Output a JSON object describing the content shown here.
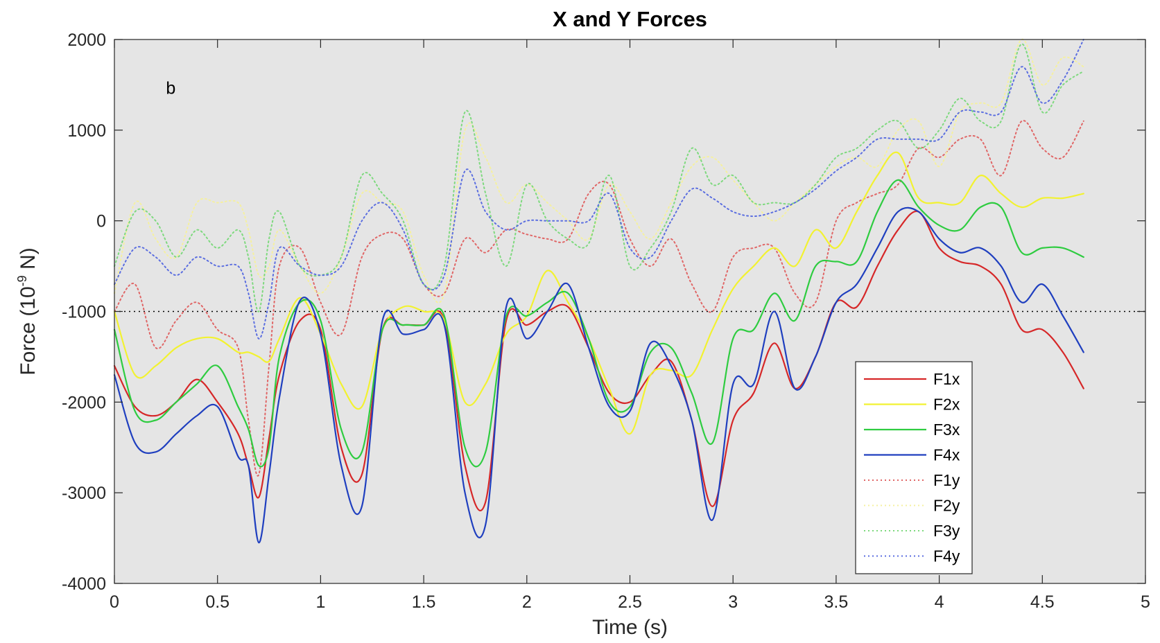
{
  "chart_data": {
    "type": "line",
    "title": "X and Y Forces",
    "xlabel": "Time (s)",
    "ylabel_main": "Force (10",
    "ylabel_exp": "-9",
    "ylabel_unit": " N)",
    "panel_label": "b",
    "xlim": [
      0,
      5
    ],
    "ylim": [
      -4000,
      2000
    ],
    "xticks": [
      0,
      0.5,
      1,
      1.5,
      2,
      2.5,
      3,
      3.5,
      4,
      4.5,
      5
    ],
    "xtick_labels": [
      "0",
      "0.5",
      "1",
      "1.5",
      "2",
      "2.5",
      "3",
      "3.5",
      "4",
      "4.5",
      "5"
    ],
    "yticks": [
      -4000,
      -3000,
      -2000,
      -1000,
      0,
      1000,
      2000
    ],
    "ytick_labels": [
      "-4000",
      "-3000",
      "-2000",
      "-1000",
      "0",
      "1000",
      "2000"
    ],
    "grid": false,
    "legend_position": "bottom-right",
    "background_color": "#e5e5e5",
    "reference_line": {
      "y": -1000,
      "color": "#000000",
      "style": "dotted"
    },
    "x": [
      0,
      0.1,
      0.2,
      0.3,
      0.4,
      0.5,
      0.6,
      0.65,
      0.7,
      0.75,
      0.8,
      0.9,
      1,
      1.1,
      1.2,
      1.3,
      1.4,
      1.5,
      1.6,
      1.7,
      1.8,
      1.9,
      2,
      2.1,
      2.2,
      2.3,
      2.4,
      2.5,
      2.6,
      2.7,
      2.8,
      2.9,
      3,
      3.1,
      3.2,
      3.3,
      3.4,
      3.5,
      3.6,
      3.7,
      3.8,
      3.9,
      4,
      4.1,
      4.2,
      4.3,
      4.4,
      4.5,
      4.6,
      4.7
    ],
    "series": [
      {
        "name": "F1x",
        "color": "#d62728",
        "style": "solid",
        "values": [
          -1600,
          -2050,
          -2150,
          -2000,
          -1750,
          -2000,
          -2350,
          -2700,
          -3050,
          -2400,
          -1700,
          -1100,
          -1200,
          -2500,
          -2800,
          -1200,
          -1150,
          -1150,
          -1100,
          -2700,
          -3100,
          -1100,
          -1150,
          -1000,
          -950,
          -1400,
          -1900,
          -2000,
          -1700,
          -1550,
          -2200,
          -3150,
          -2200,
          -1900,
          -1350,
          -1850,
          -1500,
          -900,
          -950,
          -500,
          -100,
          100,
          -300,
          -450,
          -500,
          -700,
          -1200,
          -1200,
          -1450,
          -1850
        ]
      },
      {
        "name": "F2x",
        "color": "#f2f230",
        "style": "solid",
        "values": [
          -1000,
          -1700,
          -1600,
          -1400,
          -1300,
          -1300,
          -1450,
          -1450,
          -1500,
          -1550,
          -1300,
          -850,
          -1250,
          -1800,
          -2050,
          -1200,
          -950,
          -1000,
          -1100,
          -2000,
          -1800,
          -1250,
          -1050,
          -550,
          -900,
          -1300,
          -1850,
          -2350,
          -1700,
          -1650,
          -1700,
          -1200,
          -750,
          -500,
          -300,
          -500,
          -100,
          -300,
          100,
          500,
          750,
          250,
          200,
          200,
          500,
          300,
          150,
          250,
          250,
          300
        ]
      },
      {
        "name": "F3x",
        "color": "#2ecc40",
        "style": "solid",
        "values": [
          -1200,
          -2100,
          -2200,
          -2000,
          -1800,
          -1600,
          -2050,
          -2300,
          -2700,
          -2500,
          -1500,
          -900,
          -1100,
          -2300,
          -2550,
          -1200,
          -1150,
          -1150,
          -1050,
          -2500,
          -2550,
          -1050,
          -1050,
          -900,
          -800,
          -1300,
          -2000,
          -2050,
          -1450,
          -1400,
          -1900,
          -2450,
          -1300,
          -1200,
          -800,
          -1100,
          -500,
          -450,
          -450,
          100,
          450,
          150,
          -50,
          -100,
          150,
          150,
          -350,
          -300,
          -300,
          -400
        ]
      },
      {
        "name": "F4x",
        "color": "#1f3fbf",
        "style": "solid",
        "values": [
          -1700,
          -2450,
          -2550,
          -2350,
          -2150,
          -2050,
          -2600,
          -2700,
          -3550,
          -2800,
          -1950,
          -880,
          -1250,
          -2700,
          -3150,
          -1100,
          -1250,
          -1200,
          -1150,
          -3000,
          -3350,
          -950,
          -1300,
          -1000,
          -700,
          -1400,
          -2050,
          -2100,
          -1350,
          -1600,
          -2200,
          -3300,
          -1800,
          -1800,
          -1000,
          -1850,
          -1500,
          -900,
          -700,
          -300,
          100,
          100,
          -200,
          -350,
          -300,
          -500,
          -900,
          -700,
          -1050,
          -1450
        ]
      },
      {
        "name": "F1y",
        "color": "#e06666",
        "style": "dotted",
        "values": [
          -1000,
          -700,
          -1400,
          -1100,
          -900,
          -1200,
          -1400,
          -2200,
          -2800,
          -1600,
          -500,
          -300,
          -900,
          -1250,
          -400,
          -150,
          -200,
          -700,
          -800,
          -200,
          -350,
          -100,
          -150,
          -200,
          -200,
          300,
          400,
          -200,
          -500,
          -200,
          -700,
          -1000,
          -400,
          -300,
          -300,
          -800,
          -900,
          0,
          200,
          300,
          400,
          800,
          700,
          900,
          900,
          500,
          1100,
          800,
          700,
          1100
        ]
      },
      {
        "name": "F2y",
        "color": "#f5f0a0",
        "style": "dotted",
        "values": [
          -800,
          200,
          -200,
          -400,
          200,
          200,
          200,
          -100,
          -600,
          -500,
          -100,
          -500,
          -800,
          -400,
          300,
          200,
          100,
          -600,
          -800,
          1000,
          700,
          200,
          400,
          200,
          0,
          -200,
          400,
          100,
          -200,
          200,
          600,
          700,
          450,
          200,
          0,
          200,
          400,
          600,
          700,
          600,
          1000,
          1100,
          600,
          1200,
          1300,
          1300,
          2000,
          1500,
          1800,
          1700
        ]
      },
      {
        "name": "F3y",
        "color": "#7ed97e",
        "style": "dotted",
        "values": [
          -500,
          100,
          0,
          -400,
          -100,
          -300,
          -100,
          -400,
          -1000,
          -200,
          100,
          -500,
          -600,
          -400,
          500,
          300,
          0,
          -700,
          -500,
          1200,
          300,
          -500,
          400,
          0,
          -200,
          -250,
          500,
          -500,
          -300,
          100,
          800,
          400,
          500,
          200,
          200,
          200,
          400,
          700,
          800,
          1000,
          1100,
          800,
          1000,
          1350,
          1100,
          1100,
          1950,
          1200,
          1500,
          1650
        ]
      },
      {
        "name": "F4y",
        "color": "#5b6ee0",
        "style": "dotted",
        "values": [
          -700,
          -300,
          -400,
          -600,
          -400,
          -500,
          -500,
          -800,
          -1300,
          -900,
          -300,
          -500,
          -600,
          -500,
          0,
          200,
          -100,
          -700,
          -600,
          550,
          100,
          -100,
          0,
          0,
          0,
          0,
          300,
          -300,
          -400,
          0,
          350,
          250,
          100,
          50,
          100,
          200,
          350,
          550,
          700,
          900,
          900,
          900,
          900,
          1200,
          1200,
          1200,
          1700,
          1300,
          1550,
          2000
        ]
      }
    ]
  }
}
